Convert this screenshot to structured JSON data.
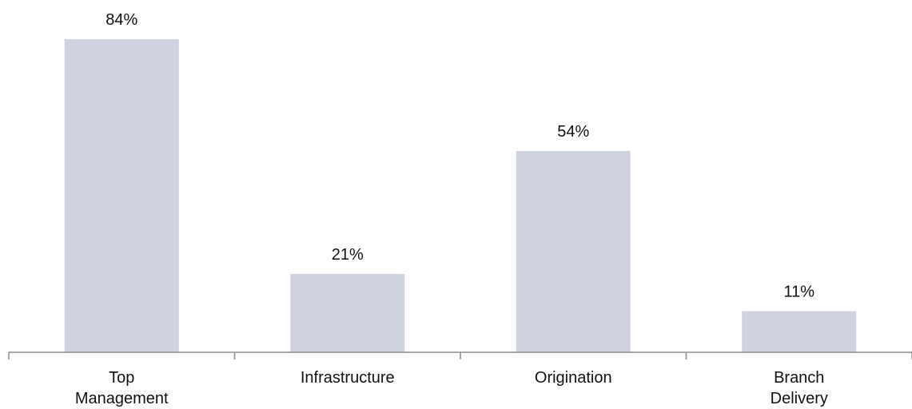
{
  "chart_data": {
    "type": "bar",
    "title": "",
    "xlabel": "",
    "ylabel": "",
    "categories": [
      [
        "Top",
        "Management"
      ],
      [
        "Infrastructure"
      ],
      [
        "Origination"
      ],
      [
        "Branch",
        "Delivery"
      ]
    ],
    "values": [
      84,
      21,
      54,
      11
    ],
    "data_labels": [
      "84%",
      "21%",
      "54%",
      "11%"
    ],
    "ylim": [
      0,
      100
    ],
    "grid": false,
    "legend": "none",
    "colors": {
      "bar": "#cfd3df",
      "axis": "#8c8c8c",
      "text": "#111111"
    }
  }
}
